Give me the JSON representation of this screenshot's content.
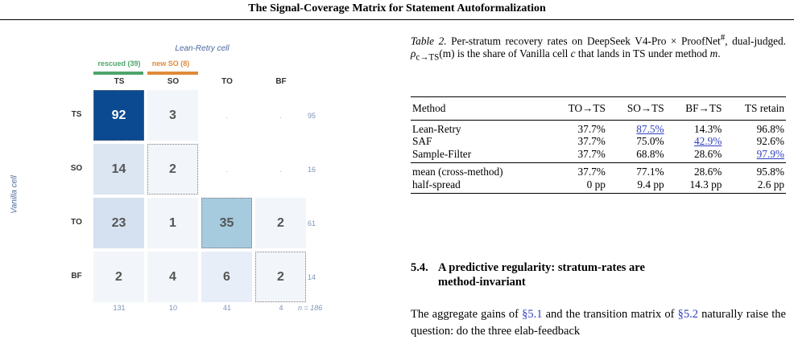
{
  "running_head": "The Signal-Coverage Matrix for Statement Autoformalization",
  "figure": {
    "column_axis_title": "Lean-Retry cell",
    "row_axis_title": "Vanilla cell",
    "bracket_green": "rescued (39)",
    "bracket_orange": "new SO (8)",
    "colors": {
      "bracket_green": "#4fa46a",
      "bracket_orange": "#e08a3a",
      "axis_title": "#4a6a9c",
      "totals": "#7c93b8"
    },
    "col_labels": [
      "TS",
      "SO",
      "TO",
      "BF"
    ],
    "row_labels": [
      "TS",
      "SO",
      "TO",
      "BF"
    ],
    "matrix": [
      [
        "92",
        "3",
        ".",
        "."
      ],
      [
        "14",
        "2",
        ".",
        "."
      ],
      [
        "23",
        "1",
        "35",
        "2"
      ],
      [
        "2",
        "4",
        "6",
        "2"
      ]
    ],
    "cell_colors": [
      [
        "#0b4a91",
        "#f2f6fb",
        "#ffffff",
        "#ffffff"
      ],
      [
        "#dce6f2",
        "#f2f6fb",
        "#ffffff",
        "#ffffff"
      ],
      [
        "#d5e1f0",
        "#f2f6fb",
        "#a6cade",
        "#f2f6fb"
      ],
      [
        "#f2f6fb",
        "#f2f6fb",
        "#e8eef8",
        "#f2f6fb"
      ]
    ],
    "row_totals": [
      "95",
      "16",
      "61",
      "14"
    ],
    "col_totals": [
      "131",
      "10",
      "41",
      "4"
    ],
    "n_label": "n = 186"
  },
  "caption": {
    "label": "Table 2.",
    "text_1": " Per-stratum recovery rates on DeepSeek V4-Pro × ProofNet",
    "text_sup": "#",
    "text_2": ", dual-judged. ",
    "rho": "ρ",
    "rho_sub": "c→TS",
    "m1": "(m)",
    "text_3": " is the share of Vanilla cell ",
    "c": "c",
    "text_4": " that lands in TS under method ",
    "m2": "m",
    "text_5": "."
  },
  "table": {
    "headers": [
      "Method",
      "TO→TS",
      "SO→TS",
      "BF→TS",
      "TS retain"
    ],
    "rows": [
      {
        "cells": [
          "Lean-Retry",
          "37.7%",
          "87.5%",
          "14.3%",
          "96.8%"
        ],
        "hl": [
          false,
          false,
          true,
          false,
          false
        ]
      },
      {
        "cells": [
          "SAF",
          "37.7%",
          "75.0%",
          "42.9%",
          "92.6%"
        ],
        "hl": [
          false,
          false,
          false,
          true,
          false
        ]
      },
      {
        "cells": [
          "Sample-Filter",
          "37.7%",
          "68.8%",
          "28.6%",
          "97.9%"
        ],
        "hl": [
          false,
          false,
          false,
          false,
          true
        ]
      }
    ],
    "summary_rows": [
      {
        "cells": [
          "mean (cross-method)",
          "37.7%",
          "77.1%",
          "28.6%",
          "95.8%"
        ]
      },
      {
        "cells": [
          "half-spread",
          "0 pp",
          "9.4 pp",
          "14.3 pp",
          "2.6 pp"
        ]
      }
    ]
  },
  "section": {
    "number": "5.4.",
    "title_line1": "A predictive regularity: stratum-rates are",
    "title_line2": "method-invariant"
  },
  "body": {
    "t1": "The aggregate gains of ",
    "link1": "§5.1",
    "t2": " and the transition matrix of ",
    "link2": "§5.2",
    "t3": " naturally raise the question: do the three elab-feedback"
  }
}
